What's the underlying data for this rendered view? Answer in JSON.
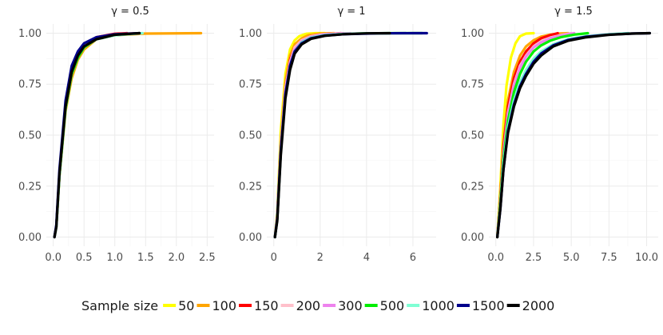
{
  "legend": {
    "title": "Sample size",
    "position": "bottom"
  },
  "chart_data": [
    {
      "type": "line",
      "title": "γ = 0.5",
      "xlabel": "",
      "ylabel": "",
      "xlim": [
        0,
        2.5
      ],
      "ylim": [
        0,
        1
      ],
      "xticks": [
        "0.0",
        "0.5",
        "1.0",
        "1.5",
        "2.0",
        "2.5"
      ],
      "yticks": [
        "0.00",
        "0.25",
        "0.50",
        "0.75",
        "1.00"
      ],
      "grid": true,
      "series": [
        {
          "name": "50",
          "color": "#FFFF00",
          "x": [
            0.02,
            0.05,
            0.1,
            0.2,
            0.3,
            0.4,
            0.5,
            0.6,
            0.8,
            1.0,
            1.2
          ],
          "y": [
            0,
            0.05,
            0.3,
            0.62,
            0.79,
            0.88,
            0.93,
            0.96,
            0.985,
            0.995,
            1.0
          ]
        },
        {
          "name": "100",
          "color": "#FFA500",
          "x": [
            0.02,
            0.05,
            0.1,
            0.2,
            0.3,
            0.4,
            0.5,
            0.7,
            1.0,
            1.5,
            2.4
          ],
          "y": [
            0,
            0.05,
            0.3,
            0.62,
            0.78,
            0.87,
            0.92,
            0.97,
            0.99,
            0.998,
            1.0
          ]
        },
        {
          "name": "150",
          "color": "#FF0000",
          "x": [
            0.02,
            0.05,
            0.1,
            0.2,
            0.3,
            0.4,
            0.5,
            0.7,
            1.0,
            1.2
          ],
          "y": [
            0,
            0.05,
            0.31,
            0.64,
            0.8,
            0.89,
            0.94,
            0.98,
            0.997,
            1.0
          ]
        },
        {
          "name": "200",
          "color": "#FFC0CB",
          "x": [
            0.02,
            0.05,
            0.1,
            0.2,
            0.3,
            0.4,
            0.5,
            0.7,
            1.0,
            1.3
          ],
          "y": [
            0,
            0.05,
            0.3,
            0.63,
            0.8,
            0.88,
            0.93,
            0.97,
            0.995,
            1.0
          ]
        },
        {
          "name": "300",
          "color": "#EE82EE",
          "x": [
            0.02,
            0.05,
            0.1,
            0.2,
            0.3,
            0.4,
            0.5,
            0.7,
            1.0,
            1.4
          ],
          "y": [
            0,
            0.05,
            0.31,
            0.64,
            0.81,
            0.89,
            0.94,
            0.975,
            0.993,
            1.0
          ]
        },
        {
          "name": "500",
          "color": "#00EE00",
          "x": [
            0.02,
            0.05,
            0.1,
            0.2,
            0.3,
            0.4,
            0.5,
            0.7,
            1.0,
            1.4
          ],
          "y": [
            0,
            0.05,
            0.3,
            0.63,
            0.8,
            0.88,
            0.93,
            0.97,
            0.99,
            1.0
          ]
        },
        {
          "name": "1000",
          "color": "#7FFFD4",
          "x": [
            0.02,
            0.05,
            0.1,
            0.2,
            0.3,
            0.4,
            0.5,
            0.7,
            1.0,
            1.45
          ],
          "y": [
            0,
            0.05,
            0.31,
            0.64,
            0.81,
            0.89,
            0.935,
            0.97,
            0.99,
            1.0
          ]
        },
        {
          "name": "1500",
          "color": "#00008B",
          "x": [
            0.02,
            0.05,
            0.1,
            0.2,
            0.3,
            0.4,
            0.5,
            0.7,
            1.0,
            1.4
          ],
          "y": [
            0,
            0.06,
            0.33,
            0.67,
            0.84,
            0.91,
            0.95,
            0.98,
            0.995,
            1.0
          ]
        },
        {
          "name": "2000",
          "color": "#000000",
          "x": [
            0.02,
            0.05,
            0.1,
            0.2,
            0.3,
            0.4,
            0.5,
            0.7,
            1.0,
            1.4
          ],
          "y": [
            0,
            0.05,
            0.31,
            0.64,
            0.81,
            0.89,
            0.935,
            0.97,
            0.992,
            1.0
          ]
        }
      ]
    },
    {
      "type": "line",
      "title": "γ = 1",
      "xlabel": "",
      "ylabel": "",
      "xlim": [
        0,
        6.7
      ],
      "ylim": [
        0,
        1
      ],
      "xticks": [
        "0",
        "2",
        "4",
        "6"
      ],
      "yticks": [
        "0.00",
        "0.25",
        "0.50",
        "0.75",
        "1.00"
      ],
      "grid": true,
      "series": [
        {
          "name": "50",
          "color": "#FFFF00",
          "x": [
            0.05,
            0.15,
            0.3,
            0.5,
            0.7,
            0.9,
            1.1,
            1.4,
            1.8,
            2.2
          ],
          "y": [
            0,
            0.12,
            0.52,
            0.8,
            0.92,
            0.965,
            0.985,
            0.997,
            1.0,
            1.0
          ]
        },
        {
          "name": "100",
          "color": "#FFA500",
          "x": [
            0.05,
            0.15,
            0.3,
            0.5,
            0.7,
            0.9,
            1.2,
            1.5,
            2.0,
            2.6
          ],
          "y": [
            0,
            0.1,
            0.47,
            0.76,
            0.89,
            0.945,
            0.975,
            0.99,
            0.998,
            1.0
          ]
        },
        {
          "name": "150",
          "color": "#FF0000",
          "x": [
            0.05,
            0.15,
            0.3,
            0.5,
            0.7,
            0.9,
            1.2,
            1.6,
            2.1,
            2.9
          ],
          "y": [
            0,
            0.1,
            0.45,
            0.73,
            0.87,
            0.93,
            0.965,
            0.985,
            0.995,
            1.0
          ]
        },
        {
          "name": "200",
          "color": "#FFC0CB",
          "x": [
            0.05,
            0.15,
            0.3,
            0.5,
            0.7,
            0.9,
            1.2,
            1.6,
            2.1,
            3.0
          ],
          "y": [
            0,
            0.1,
            0.45,
            0.73,
            0.86,
            0.93,
            0.965,
            0.985,
            0.995,
            1.0
          ]
        },
        {
          "name": "300",
          "color": "#EE82EE",
          "x": [
            0.05,
            0.15,
            0.3,
            0.5,
            0.7,
            0.9,
            1.2,
            1.6,
            2.2,
            3.3
          ],
          "y": [
            0,
            0.1,
            0.44,
            0.72,
            0.85,
            0.92,
            0.96,
            0.982,
            0.994,
            1.0
          ]
        },
        {
          "name": "500",
          "color": "#00EE00",
          "x": [
            0.05,
            0.15,
            0.3,
            0.5,
            0.7,
            0.9,
            1.2,
            1.6,
            2.2,
            3.0,
            4.0,
            5.2,
            6.4
          ],
          "y": [
            0,
            0.09,
            0.42,
            0.7,
            0.84,
            0.91,
            0.955,
            0.978,
            0.99,
            0.996,
            0.999,
            1.0,
            1.0
          ]
        },
        {
          "name": "1000",
          "color": "#7FFFD4",
          "x": [
            0.05,
            0.15,
            0.3,
            0.5,
            0.7,
            0.9,
            1.2,
            1.6,
            2.2,
            3.0,
            4.0,
            5.0
          ],
          "y": [
            0,
            0.09,
            0.42,
            0.7,
            0.84,
            0.91,
            0.955,
            0.978,
            0.99,
            0.996,
            0.999,
            1.0
          ]
        },
        {
          "name": "1500",
          "color": "#00008B",
          "x": [
            0.05,
            0.15,
            0.3,
            0.5,
            0.7,
            0.9,
            1.2,
            1.6,
            2.2,
            3.0,
            4.5,
            6.0,
            6.6
          ],
          "y": [
            0,
            0.09,
            0.42,
            0.7,
            0.84,
            0.91,
            0.95,
            0.975,
            0.988,
            0.995,
            0.999,
            1.0,
            1.0
          ]
        },
        {
          "name": "2000",
          "color": "#000000",
          "x": [
            0.05,
            0.15,
            0.3,
            0.5,
            0.7,
            0.9,
            1.2,
            1.6,
            2.2,
            3.0,
            4.0,
            5.0
          ],
          "y": [
            0,
            0.08,
            0.4,
            0.68,
            0.82,
            0.9,
            0.945,
            0.972,
            0.987,
            0.995,
            0.999,
            1.0
          ]
        }
      ]
    },
    {
      "type": "line",
      "title": "γ = 1.5",
      "xlabel": "",
      "ylabel": "",
      "xlim": [
        0,
        10.3
      ],
      "ylim": [
        0,
        1
      ],
      "xticks": [
        "0.0",
        "2.5",
        "5.0",
        "7.5",
        "10.0"
      ],
      "yticks": [
        "0.00",
        "0.25",
        "0.50",
        "0.75",
        "1.00"
      ],
      "grid": true,
      "series": [
        {
          "name": "50",
          "color": "#FFFF00",
          "x": [
            0.1,
            0.3,
            0.5,
            0.7,
            1.0,
            1.3,
            1.6,
            2.0,
            2.5
          ],
          "y": [
            0,
            0.25,
            0.55,
            0.74,
            0.88,
            0.95,
            0.985,
            0.998,
            1.0
          ]
        },
        {
          "name": "100",
          "color": "#FFA500",
          "x": [
            0.1,
            0.3,
            0.5,
            0.8,
            1.2,
            1.6,
            2.0,
            2.5,
            3.0,
            3.6,
            4.2,
            4.8
          ],
          "y": [
            0,
            0.2,
            0.46,
            0.67,
            0.81,
            0.89,
            0.935,
            0.965,
            0.983,
            0.993,
            0.998,
            1.0
          ]
        },
        {
          "name": "150",
          "color": "#FF0000",
          "x": [
            0.1,
            0.3,
            0.5,
            0.8,
            1.2,
            1.6,
            2.0,
            2.5,
            3.0,
            3.6,
            4.1
          ],
          "y": [
            0,
            0.2,
            0.44,
            0.64,
            0.78,
            0.86,
            0.91,
            0.95,
            0.975,
            0.99,
            1.0
          ]
        },
        {
          "name": "200",
          "color": "#FFC0CB",
          "x": [
            0.1,
            0.3,
            0.5,
            0.8,
            1.2,
            1.6,
            2.0,
            2.5,
            3.0,
            3.6,
            4.3,
            5.0
          ],
          "y": [
            0,
            0.18,
            0.41,
            0.61,
            0.75,
            0.84,
            0.89,
            0.935,
            0.96,
            0.978,
            0.99,
            1.0
          ]
        },
        {
          "name": "300",
          "color": "#EE82EE",
          "x": [
            0.1,
            0.3,
            0.5,
            0.8,
            1.2,
            1.6,
            2.0,
            2.5,
            3.0,
            3.6,
            4.3,
            5.2
          ],
          "y": [
            0,
            0.18,
            0.4,
            0.6,
            0.74,
            0.83,
            0.885,
            0.93,
            0.955,
            0.975,
            0.988,
            1.0
          ]
        },
        {
          "name": "500",
          "color": "#00EE00",
          "x": [
            0.1,
            0.3,
            0.5,
            0.8,
            1.2,
            1.6,
            2.0,
            2.5,
            3.0,
            3.6,
            4.3,
            5.2,
            6.1
          ],
          "y": [
            0,
            0.17,
            0.38,
            0.57,
            0.71,
            0.8,
            0.86,
            0.91,
            0.94,
            0.963,
            0.98,
            0.993,
            1.0
          ]
        },
        {
          "name": "1000",
          "color": "#7FFFD4",
          "x": [
            0.1,
            0.3,
            0.5,
            0.8,
            1.2,
            1.6,
            2.0,
            2.5,
            3.0,
            3.8,
            4.8,
            6.0,
            7.5,
            8.8
          ],
          "y": [
            0,
            0.15,
            0.35,
            0.54,
            0.67,
            0.76,
            0.82,
            0.875,
            0.91,
            0.945,
            0.97,
            0.985,
            0.995,
            1.0
          ]
        },
        {
          "name": "1500",
          "color": "#00008B",
          "x": [
            0.1,
            0.3,
            0.5,
            0.8,
            1.2,
            1.6,
            2.0,
            2.5,
            3.0,
            3.8,
            4.8,
            6.0,
            7.5,
            9.0,
            10.2
          ],
          "y": [
            0,
            0.14,
            0.33,
            0.52,
            0.65,
            0.74,
            0.8,
            0.86,
            0.9,
            0.94,
            0.967,
            0.983,
            0.993,
            0.998,
            1.0
          ]
        },
        {
          "name": "2000",
          "color": "#000000",
          "x": [
            0.1,
            0.3,
            0.5,
            0.8,
            1.2,
            1.6,
            2.0,
            2.5,
            3.0,
            3.8,
            4.8,
            6.0,
            7.5,
            9.0,
            10.2
          ],
          "y": [
            0,
            0.14,
            0.33,
            0.51,
            0.64,
            0.73,
            0.79,
            0.85,
            0.89,
            0.935,
            0.963,
            0.98,
            0.992,
            0.998,
            1.0
          ]
        }
      ]
    }
  ]
}
